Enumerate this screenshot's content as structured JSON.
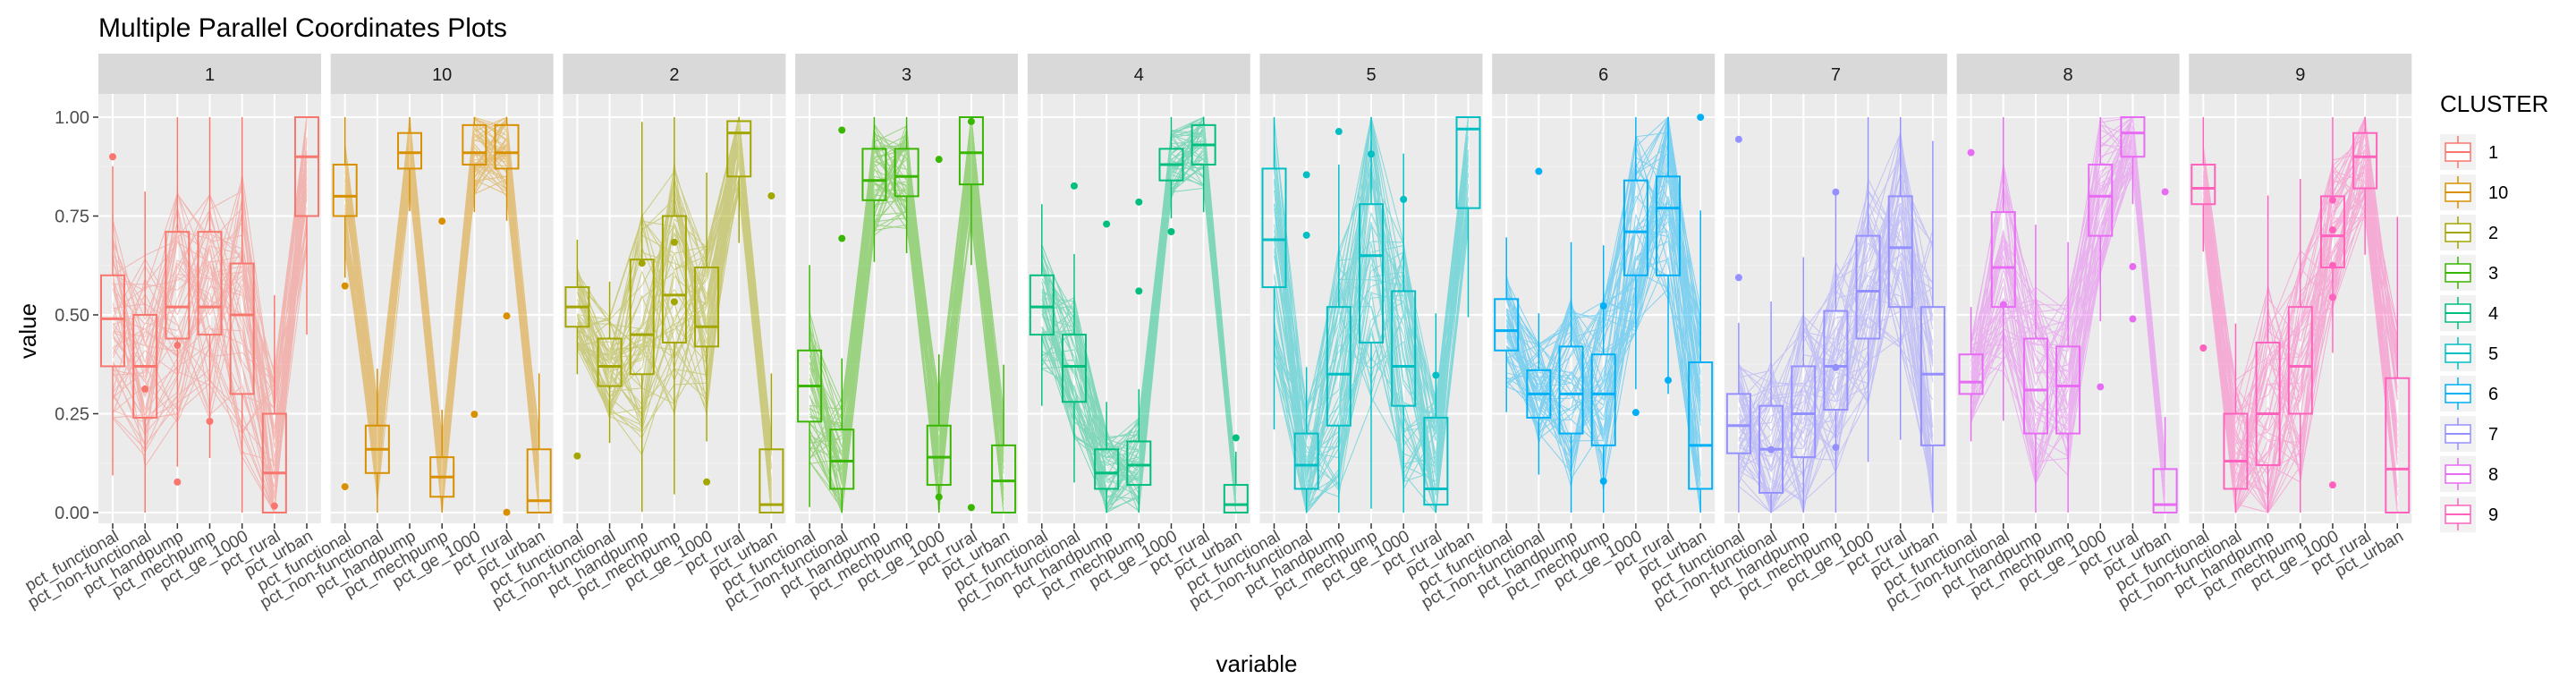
{
  "chart_data": {
    "type": "parallel_coordinates_boxplot",
    "title": "Multiple Parallel Coordinates Plots",
    "xlabel": "variable",
    "ylabel": "value",
    "ylim": [
      0,
      1
    ],
    "y_ticks": [
      "0.00",
      "0.25",
      "0.50",
      "0.75",
      "1.00"
    ],
    "variables": [
      "pct_functional",
      "pct_non-functional",
      "pct_handpump",
      "pct_mechpump",
      "pct_ge_1000",
      "pct_rural",
      "pct_urban"
    ],
    "legend": {
      "title": "CLUSTER",
      "entries": [
        "1",
        "10",
        "2",
        "3",
        "4",
        "5",
        "6",
        "7",
        "8",
        "9"
      ]
    },
    "colors": {
      "1": "#F8766D",
      "10": "#D89000",
      "2": "#A3A500",
      "3": "#39B600",
      "4": "#00BF7D",
      "5": "#00BFC4",
      "6": "#00B0F6",
      "7": "#9590FF",
      "8": "#E76BF3",
      "9": "#FF62BC"
    },
    "panels": [
      {
        "cluster": "1",
        "boxes": [
          [
            0.37,
            0.49,
            0.6
          ],
          [
            0.24,
            0.37,
            0.5
          ],
          [
            0.44,
            0.52,
            0.71
          ],
          [
            0.45,
            0.52,
            0.71
          ],
          [
            0.3,
            0.5,
            0.63
          ],
          [
            0.0,
            0.1,
            0.25
          ],
          [
            0.75,
            0.9,
            1.0
          ]
        ]
      },
      {
        "cluster": "10",
        "boxes": [
          [
            0.75,
            0.8,
            0.88
          ],
          [
            0.1,
            0.16,
            0.22
          ],
          [
            0.87,
            0.91,
            0.96
          ],
          [
            0.04,
            0.09,
            0.14
          ],
          [
            0.88,
            0.91,
            0.98
          ],
          [
            0.87,
            0.91,
            0.98
          ],
          [
            0.0,
            0.03,
            0.16
          ]
        ]
      },
      {
        "cluster": "2",
        "boxes": [
          [
            0.47,
            0.52,
            0.57
          ],
          [
            0.32,
            0.37,
            0.44
          ],
          [
            0.35,
            0.45,
            0.64
          ],
          [
            0.43,
            0.55,
            0.75
          ],
          [
            0.42,
            0.47,
            0.62
          ],
          [
            0.85,
            0.96,
            0.99
          ],
          [
            0.0,
            0.02,
            0.16
          ]
        ]
      },
      {
        "cluster": "3",
        "boxes": [
          [
            0.23,
            0.32,
            0.41
          ],
          [
            0.06,
            0.13,
            0.21
          ],
          [
            0.79,
            0.84,
            0.92
          ],
          [
            0.8,
            0.85,
            0.92
          ],
          [
            0.07,
            0.14,
            0.22
          ],
          [
            0.83,
            0.91,
            1.0
          ],
          [
            0.0,
            0.08,
            0.17
          ]
        ]
      },
      {
        "cluster": "4",
        "boxes": [
          [
            0.45,
            0.52,
            0.6
          ],
          [
            0.28,
            0.37,
            0.45
          ],
          [
            0.06,
            0.1,
            0.16
          ],
          [
            0.07,
            0.12,
            0.18
          ],
          [
            0.84,
            0.88,
            0.92
          ],
          [
            0.88,
            0.93,
            0.98
          ],
          [
            0.0,
            0.02,
            0.07
          ]
        ]
      },
      {
        "cluster": "5",
        "boxes": [
          [
            0.57,
            0.69,
            0.87
          ],
          [
            0.06,
            0.12,
            0.2
          ],
          [
            0.22,
            0.35,
            0.52
          ],
          [
            0.43,
            0.65,
            0.78
          ],
          [
            0.27,
            0.37,
            0.56
          ],
          [
            0.02,
            0.06,
            0.24
          ],
          [
            0.77,
            0.97,
            1.0
          ]
        ]
      },
      {
        "cluster": "6",
        "boxes": [
          [
            0.41,
            0.46,
            0.54
          ],
          [
            0.24,
            0.3,
            0.36
          ],
          [
            0.2,
            0.3,
            0.42
          ],
          [
            0.17,
            0.3,
            0.4
          ],
          [
            0.6,
            0.71,
            0.84
          ],
          [
            0.6,
            0.77,
            0.85
          ],
          [
            0.06,
            0.17,
            0.38
          ]
        ]
      },
      {
        "cluster": "7",
        "boxes": [
          [
            0.15,
            0.22,
            0.3
          ],
          [
            0.05,
            0.16,
            0.27
          ],
          [
            0.14,
            0.25,
            0.37
          ],
          [
            0.26,
            0.37,
            0.51
          ],
          [
            0.44,
            0.56,
            0.7
          ],
          [
            0.52,
            0.67,
            0.8
          ],
          [
            0.17,
            0.35,
            0.52
          ]
        ]
      },
      {
        "cluster": "8",
        "boxes": [
          [
            0.3,
            0.33,
            0.4
          ],
          [
            0.52,
            0.62,
            0.76
          ],
          [
            0.2,
            0.31,
            0.44
          ],
          [
            0.2,
            0.32,
            0.42
          ],
          [
            0.7,
            0.8,
            0.88
          ],
          [
            0.9,
            0.96,
            1.0
          ],
          [
            0.0,
            0.02,
            0.11
          ]
        ]
      },
      {
        "cluster": "9",
        "boxes": [
          [
            0.78,
            0.82,
            0.88
          ],
          [
            0.06,
            0.13,
            0.25
          ],
          [
            0.12,
            0.25,
            0.43
          ],
          [
            0.25,
            0.37,
            0.52
          ],
          [
            0.62,
            0.7,
            0.8
          ],
          [
            0.82,
            0.9,
            0.96
          ],
          [
            0.0,
            0.11,
            0.34
          ]
        ]
      }
    ]
  }
}
